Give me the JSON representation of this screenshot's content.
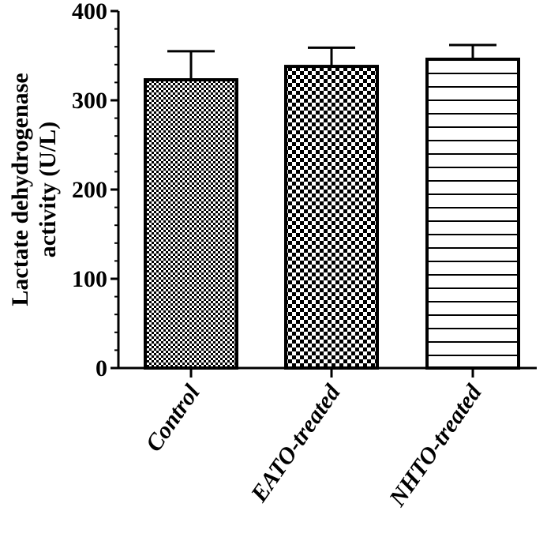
{
  "chart_data": {
    "type": "bar",
    "ylabel": "Lactate dehydrogenase activity (U/L)",
    "ylabel_lines": [
      "Lactate dehydrogenase",
      "activity (U/L)"
    ],
    "categories": [
      "Control",
      "EATO-treated",
      "NHTO-treated"
    ],
    "values": [
      323,
      338,
      346
    ],
    "error_upper": [
      355,
      359,
      362
    ],
    "bar_patterns": [
      "fine-checker",
      "coarse-checker",
      "horizontal-stripes"
    ],
    "ylim": [
      0,
      400
    ],
    "yticks": [
      0,
      100,
      200,
      300,
      400
    ],
    "grid": false,
    "legend": "none"
  }
}
